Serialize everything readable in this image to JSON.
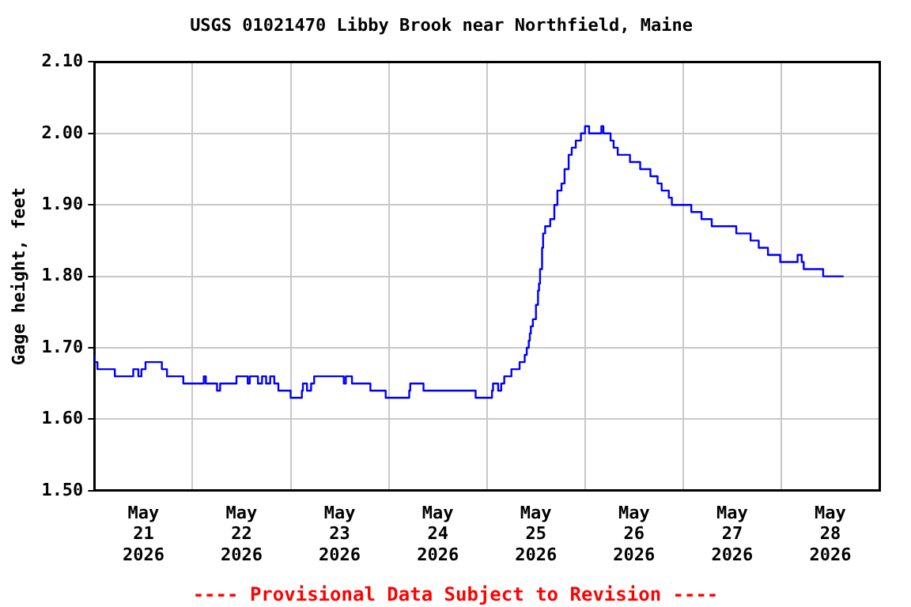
{
  "chart_data": {
    "type": "step",
    "title": "USGS 01021470 Libby Brook near Northfield, Maine",
    "ylabel": "Gage height, feet",
    "annotations": [
      "---- Provisional Data Subject to Revision ----"
    ],
    "x": [
      "2026-05-21T00:00",
      "2026-05-21T00:45",
      "2026-05-21T05:00",
      "2026-05-21T09:30",
      "2026-05-21T10:45",
      "2026-05-21T11:30",
      "2026-05-21T12:30",
      "2026-05-21T16:30",
      "2026-05-21T17:45",
      "2026-05-21T21:45",
      "2026-05-22T02:45",
      "2026-05-22T03:15",
      "2026-05-22T06:00",
      "2026-05-22T06:45",
      "2026-05-22T10:45",
      "2026-05-22T13:30",
      "2026-05-22T14:00",
      "2026-05-22T16:00",
      "2026-05-22T17:00",
      "2026-05-22T18:00",
      "2026-05-22T19:00",
      "2026-05-22T20:00",
      "2026-05-22T21:00",
      "2026-05-23T00:00",
      "2026-05-23T02:45",
      "2026-05-23T03:00",
      "2026-05-23T04:00",
      "2026-05-23T05:00",
      "2026-05-23T05:45",
      "2026-05-23T13:00",
      "2026-05-23T13:30",
      "2026-05-23T15:00",
      "2026-05-23T19:30",
      "2026-05-23T23:15",
      "2026-05-24T05:00",
      "2026-05-24T05:15",
      "2026-05-24T08:30",
      "2026-05-24T21:15",
      "2026-05-25T01:15",
      "2026-05-25T01:30",
      "2026-05-25T02:45",
      "2026-05-25T03:30",
      "2026-05-25T04:15",
      "2026-05-25T06:00",
      "2026-05-25T08:00",
      "2026-05-25T09:15",
      "2026-05-25T09:45",
      "2026-05-25T10:15",
      "2026-05-25T10:30",
      "2026-05-25T10:45",
      "2026-05-25T11:15",
      "2026-05-25T12:00",
      "2026-05-25T12:30",
      "2026-05-25T12:45",
      "2026-05-25T13:00",
      "2026-05-25T13:30",
      "2026-05-25T13:45",
      "2026-05-25T14:15",
      "2026-05-25T15:30",
      "2026-05-25T16:30",
      "2026-05-25T17:15",
      "2026-05-25T18:15",
      "2026-05-25T19:00",
      "2026-05-25T20:00",
      "2026-05-25T20:45",
      "2026-05-25T21:45",
      "2026-05-25T23:00",
      "2026-05-26T00:00",
      "2026-05-26T01:00",
      "2026-05-26T04:00",
      "2026-05-26T04:30",
      "2026-05-26T06:15",
      "2026-05-26T07:00",
      "2026-05-26T08:00",
      "2026-05-26T11:00",
      "2026-05-26T13:30",
      "2026-05-26T16:00",
      "2026-05-26T17:45",
      "2026-05-26T18:45",
      "2026-05-26T20:30",
      "2026-05-26T21:15",
      "2026-05-27T02:00",
      "2026-05-27T04:30",
      "2026-05-27T07:00",
      "2026-05-27T13:00",
      "2026-05-27T16:30",
      "2026-05-27T18:30",
      "2026-05-27T20:45",
      "2026-05-27T23:45",
      "2026-05-28T04:00",
      "2026-05-28T05:00",
      "2026-05-28T05:30",
      "2026-05-28T10:15",
      "2026-05-28T15:15"
    ],
    "series": [
      {
        "color": "#0000ff",
        "values": [
          1.69,
          1.68,
          1.67,
          1.66,
          1.67,
          1.66,
          1.67,
          1.68,
          1.67,
          1.66,
          1.65,
          1.66,
          1.65,
          1.64,
          1.65,
          1.66,
          1.65,
          1.66,
          1.65,
          1.66,
          1.65,
          1.66,
          1.65,
          1.64,
          1.63,
          1.64,
          1.65,
          1.64,
          1.65,
          1.66,
          1.65,
          1.66,
          1.65,
          1.64,
          1.63,
          1.64,
          1.65,
          1.64,
          1.63,
          1.64,
          1.65,
          1.64,
          1.65,
          1.66,
          1.67,
          1.68,
          1.69,
          1.7,
          1.71,
          1.72,
          1.73,
          1.74,
          1.76,
          1.78,
          1.79,
          1.81,
          1.84,
          1.86,
          1.87,
          1.88,
          1.9,
          1.92,
          1.93,
          1.95,
          1.97,
          1.98,
          1.99,
          2.0,
          2.01,
          2.0,
          2.01,
          2.0,
          1.99,
          1.98,
          1.97,
          1.96,
          1.95,
          1.94,
          1.93,
          1.92,
          1.91,
          1.9,
          1.89,
          1.88,
          1.87,
          1.86,
          1.85,
          1.84,
          1.83,
          1.82,
          1.83,
          1.82,
          1.81,
          1.8
        ]
      }
    ],
    "xlim": [
      "2026-05-21T00:00",
      "2026-05-29T00:00"
    ],
    "xticks": [
      {
        "value": "2026-05-21T12:00",
        "label": "May 21 2026"
      },
      {
        "value": "2026-05-22T00:00",
        "label": null
      },
      {
        "value": "2026-05-22T12:00",
        "label": "May 22 2026"
      },
      {
        "value": "2026-05-23T00:00",
        "label": null
      },
      {
        "value": "2026-05-23T12:00",
        "label": "May 23 2026"
      },
      {
        "value": "2026-05-24T00:00",
        "label": null
      },
      {
        "value": "2026-05-24T12:00",
        "label": "May 24 2026"
      },
      {
        "value": "2026-05-25T00:00",
        "label": null
      },
      {
        "value": "2026-05-25T12:00",
        "label": "May 25 2026"
      },
      {
        "value": "2026-05-26T00:00",
        "label": null
      },
      {
        "value": "2026-05-26T12:00",
        "label": "May 26 2026"
      },
      {
        "value": "2026-05-27T00:00",
        "label": null
      },
      {
        "value": "2026-05-27T12:00",
        "label": "May 27 2026"
      },
      {
        "value": "2026-05-28T00:00",
        "label": null
      },
      {
        "value": "2026-05-28T12:00",
        "label": "May 28 2026"
      }
    ],
    "ylim": [
      1.5,
      2.1
    ],
    "yticks": [
      {
        "value": 1.5,
        "label": "1.50"
      },
      {
        "value": 1.6,
        "label": "1.60"
      },
      {
        "value": 1.7,
        "label": "1.70"
      },
      {
        "value": 1.8,
        "label": "1.80"
      },
      {
        "value": 1.9,
        "label": "1.90"
      },
      {
        "value": 2.0,
        "label": "2.00"
      },
      {
        "value": 2.1,
        "label": "2.10"
      }
    ],
    "grid": true,
    "line_style": "solid"
  }
}
